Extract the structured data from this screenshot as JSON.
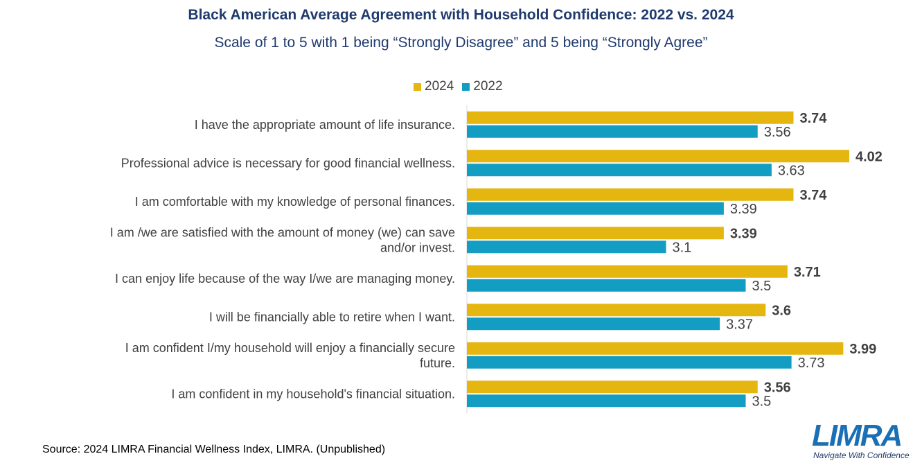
{
  "header": {
    "title": "Black American Average Agreement with Household Confidence: 2022 vs. 2024",
    "subtitle": "Scale of 1 to 5 with 1 being “Strongly Disagree” and 5 being “Strongly Agree”"
  },
  "legend": [
    {
      "label": "2024",
      "color": "#e4b60f"
    },
    {
      "label": "2022",
      "color": "#139dc2"
    }
  ],
  "chart_data": {
    "type": "bar",
    "orientation": "horizontal",
    "title": "Black American Average Agreement with Household Confidence: 2022 vs. 2024",
    "subtitle": "Scale of 1 to 5 with 1 being “Strongly Disagree” and 5 being “Strongly Agree”",
    "categories": [
      "I have the appropriate amount of life insurance.",
      "Professional advice is necessary for good financial wellness.",
      "I am comfortable with my knowledge of personal finances.",
      "I am /we are satisfied with the amount of money (we) can save and/or invest.",
      "I can enjoy life because of the way I/we are managing money.",
      "I will be financially able to retire when I want.",
      "I am confident I/my household will enjoy a financially secure future.",
      "I am confident in my household's financial situation."
    ],
    "series": [
      {
        "name": "2024",
        "color": "#e4b60f",
        "bold_labels": true,
        "values": [
          3.74,
          4.02,
          3.74,
          3.39,
          3.71,
          3.6,
          3.99,
          3.56
        ]
      },
      {
        "name": "2022",
        "color": "#139dc2",
        "bold_labels": false,
        "values": [
          3.56,
          3.63,
          3.39,
          3.1,
          3.5,
          3.37,
          3.73,
          3.5
        ]
      }
    ],
    "xlim": [
      2.1,
      4.02
    ],
    "grid": false,
    "legend_position": "top"
  },
  "footer": {
    "source": "Source: 2024 LIMRA Financial Wellness Index, LIMRA. (Unpublished)"
  },
  "logo": {
    "wordmark": "LIMRA",
    "tagline": "Navigate With Confidence"
  }
}
